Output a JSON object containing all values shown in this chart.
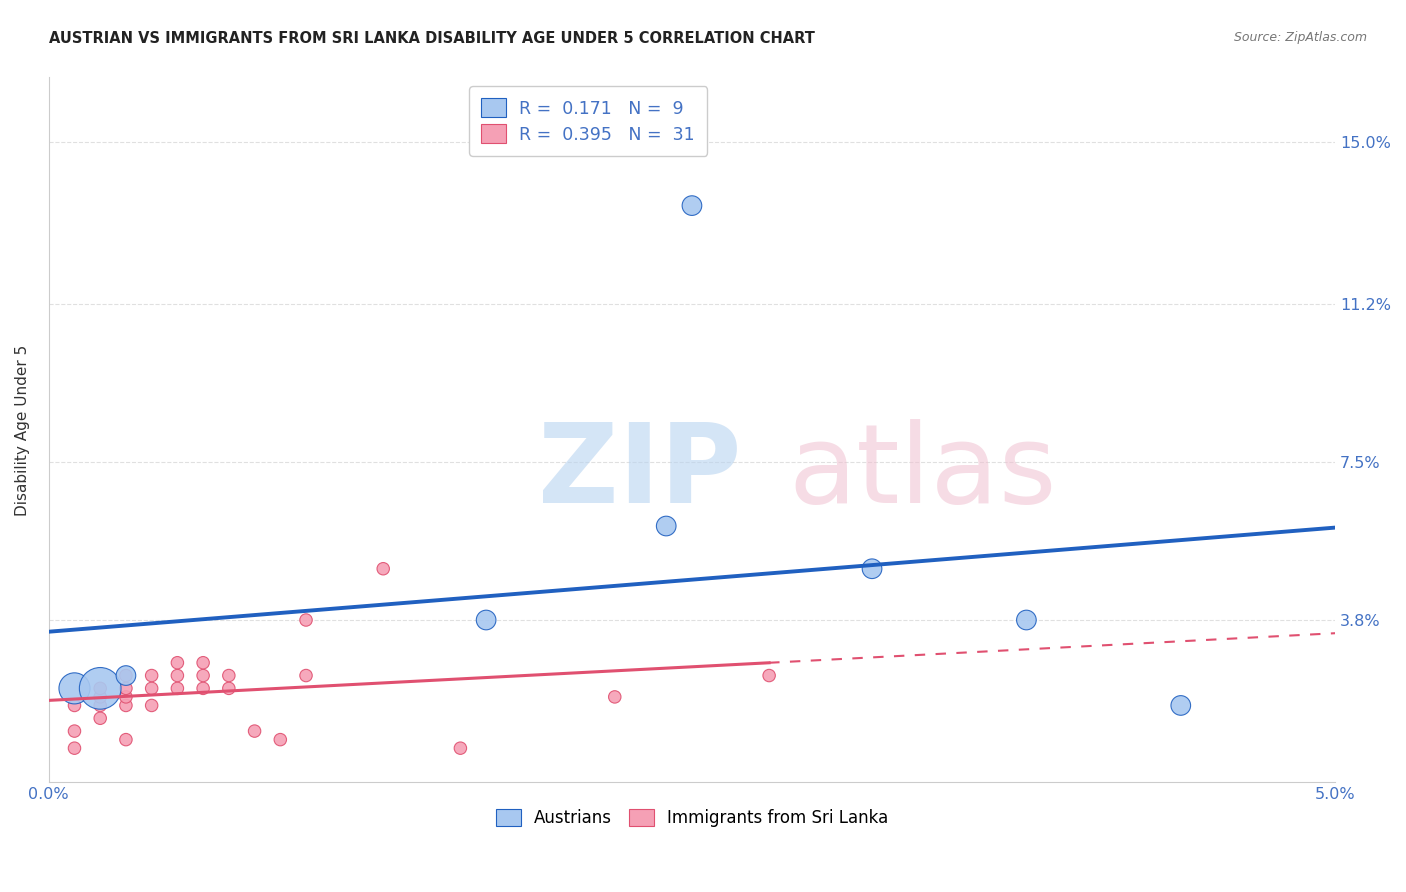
{
  "title": "AUSTRIAN VS IMMIGRANTS FROM SRI LANKA DISABILITY AGE UNDER 5 CORRELATION CHART",
  "source": "Source: ZipAtlas.com",
  "ylabel": "Disability Age Under 5",
  "xlim": [
    0.0,
    0.05
  ],
  "ylim": [
    0.0,
    0.165
  ],
  "yticks": [
    0.0,
    0.038,
    0.075,
    0.112,
    0.15
  ],
  "ytick_labels": [
    "",
    "3.8%",
    "7.5%",
    "11.2%",
    "15.0%"
  ],
  "xticks": [
    0.0,
    0.0125,
    0.025,
    0.0375,
    0.05
  ],
  "xtick_labels": [
    "0.0%",
    "",
    "",
    "",
    "5.0%"
  ],
  "austrians_x": [
    0.001,
    0.002,
    0.003,
    0.017,
    0.024,
    0.025,
    0.032,
    0.038,
    0.044
  ],
  "austrians_y": [
    0.022,
    0.022,
    0.025,
    0.038,
    0.06,
    0.135,
    0.05,
    0.038,
    0.018
  ],
  "austrians_size": [
    500,
    900,
    200,
    200,
    200,
    200,
    200,
    200,
    200
  ],
  "austrians_R": 0.171,
  "austrians_N": 9,
  "sri_lanka_x": [
    0.001,
    0.001,
    0.001,
    0.002,
    0.002,
    0.002,
    0.002,
    0.003,
    0.003,
    0.003,
    0.003,
    0.003,
    0.004,
    0.004,
    0.004,
    0.005,
    0.005,
    0.005,
    0.006,
    0.006,
    0.006,
    0.007,
    0.007,
    0.008,
    0.009,
    0.01,
    0.01,
    0.013,
    0.016,
    0.022,
    0.028
  ],
  "sri_lanka_y": [
    0.008,
    0.012,
    0.018,
    0.015,
    0.018,
    0.02,
    0.022,
    0.01,
    0.018,
    0.02,
    0.022,
    0.025,
    0.018,
    0.022,
    0.025,
    0.022,
    0.025,
    0.028,
    0.022,
    0.025,
    0.028,
    0.022,
    0.025,
    0.012,
    0.01,
    0.025,
    0.038,
    0.05,
    0.008,
    0.02,
    0.025
  ],
  "sri_lanka_size": [
    80,
    80,
    80,
    80,
    80,
    80,
    80,
    80,
    80,
    80,
    80,
    80,
    80,
    80,
    80,
    80,
    80,
    80,
    80,
    80,
    80,
    80,
    80,
    80,
    80,
    80,
    80,
    80,
    80,
    80,
    80
  ],
  "sri_lanka_R": 0.395,
  "sri_lanka_N": 31,
  "austrians_color": "#A8C8F0",
  "sri_lanka_color": "#F5A0B5",
  "austrians_line_color": "#2060C0",
  "sri_lanka_line_color": "#E05070",
  "background_color": "#ffffff",
  "grid_color": "#e0e0e0"
}
